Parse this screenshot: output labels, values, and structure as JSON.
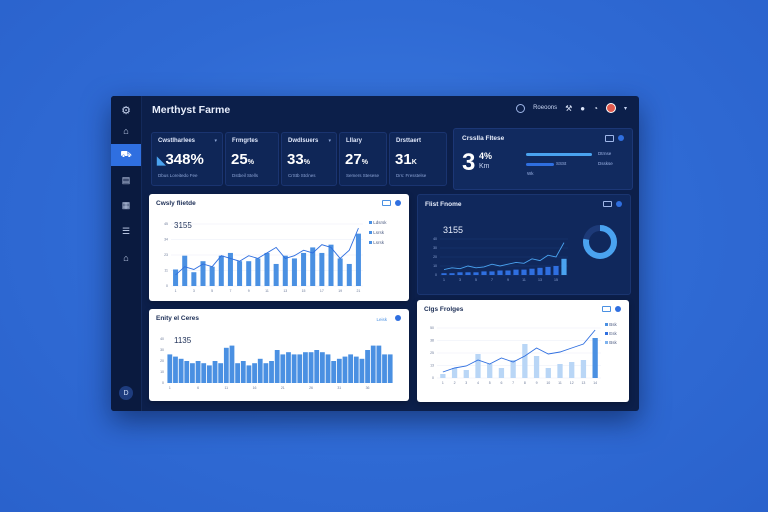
{
  "app": {
    "title": "Merthyst Farme"
  },
  "header": {
    "search_label": "Roeoons",
    "icons": [
      "search-icon",
      "tool-icon",
      "user-icon",
      "bell-icon",
      "avatar"
    ],
    "menu_label": "▾"
  },
  "sidebar": {
    "items": [
      {
        "icon": "logo-icon",
        "glyph": "⚙"
      },
      {
        "icon": "cart-icon",
        "glyph": "⌂"
      },
      {
        "icon": "vehicle-icon",
        "glyph": "⛟"
      },
      {
        "icon": "document-icon",
        "glyph": "▤"
      },
      {
        "icon": "calendar-icon",
        "glyph": "▦"
      },
      {
        "icon": "list-icon",
        "glyph": "☰"
      },
      {
        "icon": "home-icon",
        "glyph": "⌂"
      }
    ],
    "bottom_label": "D"
  },
  "kpis": [
    {
      "label": "Cwstlharlees",
      "value": "348%",
      "prefix": "◣",
      "sub": "Dbus Loreitedo Fee"
    },
    {
      "label": "Frmgrtes",
      "value": "25",
      "unit": "%",
      "sub": "Dstbeil Stells"
    },
    {
      "label": "Dwdlsuers",
      "value": "33",
      "unit": "%",
      "sub": "CrStb Stclnes"
    },
    {
      "label": "Lllary",
      "value": "27",
      "unit": "%",
      "sub": "Semers Stesese"
    },
    {
      "label": "Drsttaert",
      "value": "31",
      "unit": "K",
      "sub": "Drs: Fresstelse"
    }
  ],
  "big_kpi": {
    "title": "Crsslla Fltese",
    "value": "3",
    "pct": "4%",
    "unit": "Km",
    "bar_labels": [
      "Dtrnse",
      "SSSt",
      "Dsskse"
    ],
    "bar_small": "Wk",
    "accent": "#4aa3f0"
  },
  "card_sales": {
    "title": "Cwsly flietde",
    "value": "3155",
    "legend": [
      "Ldsrsk",
      "Lsrsk",
      "Lsrsk"
    ],
    "series_color": "#4a90e2"
  },
  "card_pane": {
    "title": "Flist Fnome",
    "value": "3155",
    "donut_color": "#4aa3f0",
    "donut_fraction": 0.78
  },
  "card_daily": {
    "title": "Enity el Ceres",
    "value": "1135",
    "control": "Leisk"
  },
  "card_stages": {
    "title": "Clgs Frolges",
    "legend": [
      "Bsk",
      "Esk",
      "Bsk"
    ]
  },
  "chart_data": [
    {
      "type": "bar",
      "title": "Cwsly flietde",
      "categories": [
        "1",
        "2",
        "3",
        "4",
        "5",
        "6",
        "7",
        "8",
        "9",
        "10",
        "11",
        "12",
        "13",
        "14",
        "15",
        "16",
        "17",
        "18",
        "19",
        "20",
        "21"
      ],
      "values": [
        12,
        22,
        10,
        18,
        14,
        22,
        24,
        18,
        18,
        20,
        24,
        16,
        22,
        20,
        24,
        28,
        24,
        30,
        20,
        16,
        38
      ],
      "line": [
        8,
        14,
        12,
        16,
        14,
        22,
        20,
        18,
        22,
        20,
        24,
        28,
        20,
        22,
        26,
        24,
        30,
        28,
        20,
        26,
        42
      ],
      "ylim": [
        0,
        45
      ]
    },
    {
      "type": "bar",
      "title": "Flist Fnome",
      "categories": [
        "1",
        "2",
        "3",
        "4",
        "5",
        "6",
        "7",
        "8",
        "9",
        "10",
        "11",
        "12",
        "13",
        "14",
        "15",
        "16"
      ],
      "values": [
        2,
        2,
        3,
        3,
        3,
        4,
        4,
        5,
        5,
        6,
        6,
        7,
        8,
        9,
        10,
        18
      ],
      "line": [
        6,
        8,
        7,
        10,
        8,
        9,
        12,
        10,
        12,
        14,
        13,
        18,
        16,
        22,
        20,
        36
      ],
      "ylim": [
        0,
        40
      ]
    },
    {
      "type": "bar",
      "title": "Enity el Ceres",
      "categories": [
        "1",
        "2",
        "3",
        "4",
        "5",
        "6",
        "7",
        "8",
        "9",
        "10",
        "11",
        "12",
        "13",
        "14",
        "15",
        "16",
        "17",
        "18",
        "19",
        "20",
        "21",
        "22",
        "23",
        "24",
        "25",
        "26",
        "27",
        "28",
        "29",
        "30",
        "31",
        "32",
        "33",
        "34",
        "35",
        "36",
        "37",
        "38",
        "39",
        "40"
      ],
      "values": [
        26,
        24,
        22,
        20,
        18,
        20,
        18,
        16,
        20,
        18,
        32,
        34,
        18,
        20,
        16,
        18,
        22,
        18,
        20,
        30,
        26,
        28,
        26,
        26,
        28,
        28,
        30,
        28,
        26,
        20,
        22,
        24,
        26,
        24,
        22,
        30,
        34,
        34,
        26,
        26
      ],
      "ylim": [
        0,
        40
      ]
    },
    {
      "type": "bar",
      "title": "Clgs Frolges",
      "categories": [
        "1",
        "2",
        "3",
        "4",
        "5",
        "6",
        "7",
        "8",
        "9",
        "10",
        "11",
        "12",
        "13",
        "14"
      ],
      "values": [
        4,
        10,
        8,
        24,
        14,
        10,
        18,
        34,
        22,
        10,
        14,
        16,
        18,
        40
      ],
      "line": [
        6,
        10,
        12,
        18,
        14,
        20,
        16,
        22,
        30,
        24,
        26,
        30,
        34,
        48
      ],
      "ylim": [
        0,
        50
      ]
    }
  ]
}
